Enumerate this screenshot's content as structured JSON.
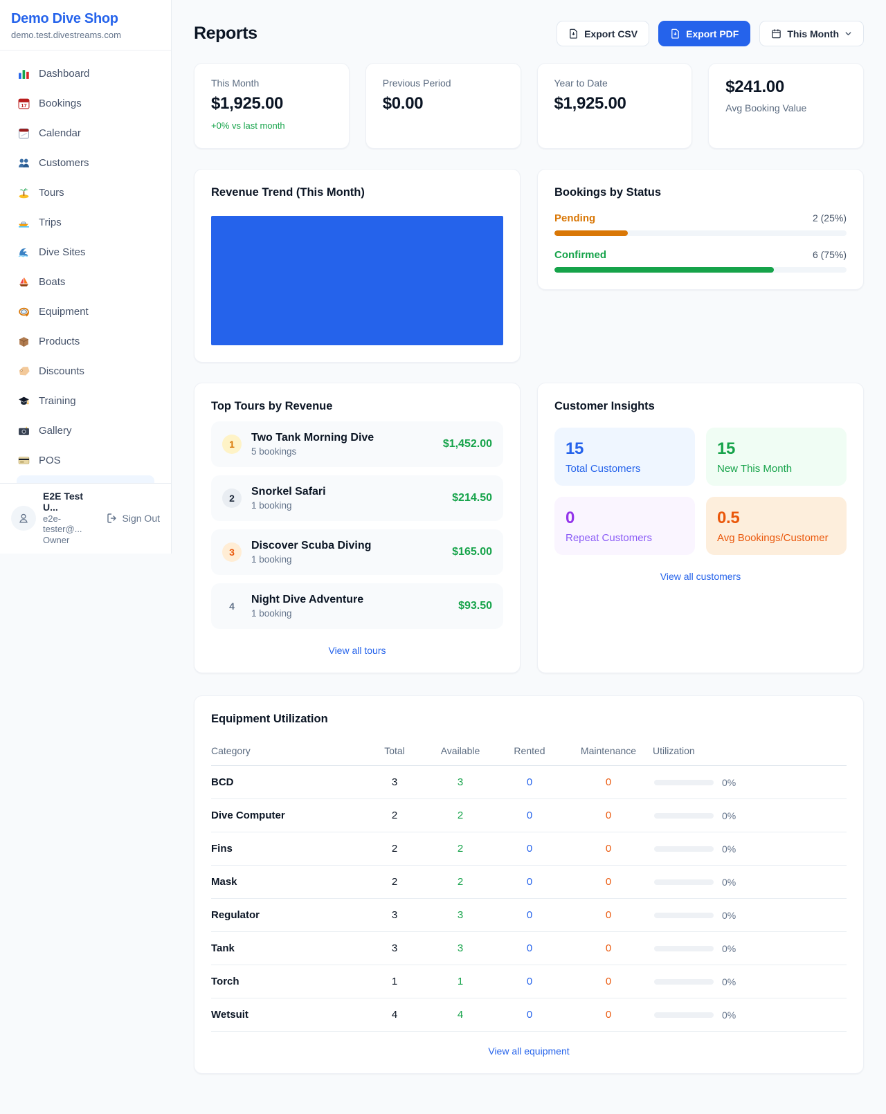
{
  "app": {
    "name": "Demo Dive Shop",
    "domain": "demo.test.divestreams.com"
  },
  "colors": {
    "primary": "#2563eb",
    "green": "#16a34a",
    "amber": "#d97706",
    "orange": "#ea580c",
    "purple": "#9333ea"
  },
  "sidebar": {
    "items": [
      {
        "icon": "bar-chart",
        "label": "Dashboard"
      },
      {
        "icon": "calendar-date",
        "label": "Bookings"
      },
      {
        "icon": "calendar-pad",
        "label": "Calendar"
      },
      {
        "icon": "people",
        "label": "Customers"
      },
      {
        "icon": "island",
        "label": "Tours"
      },
      {
        "icon": "speedboat",
        "label": "Trips"
      },
      {
        "icon": "wave",
        "label": "Dive Sites"
      },
      {
        "icon": "sailboat",
        "label": "Boats"
      },
      {
        "icon": "dive-mask",
        "label": "Equipment"
      },
      {
        "icon": "box",
        "label": "Products"
      },
      {
        "icon": "tag",
        "label": "Discounts"
      },
      {
        "icon": "grad-cap",
        "label": "Training"
      },
      {
        "icon": "camera",
        "label": "Gallery"
      },
      {
        "icon": "credit-card",
        "label": "POS"
      }
    ],
    "user": {
      "name": "E2E Test U...",
      "email": "e2e-tester@...",
      "role": "Owner",
      "sign_out_label": "Sign Out"
    }
  },
  "header": {
    "title": "Reports",
    "export_csv_label": "Export CSV",
    "export_pdf_label": "Export PDF",
    "period_label": "This Month"
  },
  "stats": [
    {
      "label": "This Month",
      "value": "$1,925.00",
      "delta": "+0% vs last month"
    },
    {
      "label": "Previous Period",
      "value": "$0.00"
    },
    {
      "label": "Year to Date",
      "value": "$1,925.00"
    },
    {
      "label": "Avg Booking Value",
      "value": "$241.00"
    }
  ],
  "revenue_trend": {
    "title": "Revenue Trend (This Month)",
    "chart_data": {
      "type": "bar",
      "categories": [
        "This Month"
      ],
      "values": [
        1925
      ],
      "title": "Revenue Trend (This Month)",
      "xlabel": "",
      "ylabel": "",
      "note": "single full-width bar at 100% height",
      "bar_color": "#2563eb"
    }
  },
  "bookings_by_status": {
    "title": "Bookings by Status",
    "rows": [
      {
        "label": "Pending",
        "count": "2 (25%)",
        "pct": 25
      },
      {
        "label": "Confirmed",
        "count": "6 (75%)",
        "pct": 75
      }
    ]
  },
  "top_tours": {
    "title": "Top Tours by Revenue",
    "rows": [
      {
        "rank": "1",
        "name": "Two Tank Morning Dive",
        "bookings": "5 bookings",
        "revenue": "$1,452.00"
      },
      {
        "rank": "2",
        "name": "Snorkel Safari",
        "bookings": "1 booking",
        "revenue": "$214.50"
      },
      {
        "rank": "3",
        "name": "Discover Scuba Diving",
        "bookings": "1 booking",
        "revenue": "$165.00"
      },
      {
        "rank": "4",
        "name": "Night Dive Adventure",
        "bookings": "1 booking",
        "revenue": "$93.50"
      }
    ],
    "link": "View all tours"
  },
  "customer_insights": {
    "title": "Customer Insights",
    "tiles": [
      {
        "value": "15",
        "label": "Total Customers"
      },
      {
        "value": "15",
        "label": "New This Month"
      },
      {
        "value": "0",
        "label": "Repeat Customers"
      },
      {
        "value": "0.5",
        "label": "Avg Bookings/Customer"
      }
    ],
    "link": "View all customers"
  },
  "equipment": {
    "title": "Equipment Utilization",
    "columns": [
      "Category",
      "Total",
      "Available",
      "Rented",
      "Maintenance",
      "Utilization"
    ],
    "rows": [
      {
        "category": "BCD",
        "total": "3",
        "available": "3",
        "rented": "0",
        "maintenance": "0",
        "utilization": "0%"
      },
      {
        "category": "Dive Computer",
        "total": "2",
        "available": "2",
        "rented": "0",
        "maintenance": "0",
        "utilization": "0%"
      },
      {
        "category": "Fins",
        "total": "2",
        "available": "2",
        "rented": "0",
        "maintenance": "0",
        "utilization": "0%"
      },
      {
        "category": "Mask",
        "total": "2",
        "available": "2",
        "rented": "0",
        "maintenance": "0",
        "utilization": "0%"
      },
      {
        "category": "Regulator",
        "total": "3",
        "available": "3",
        "rented": "0",
        "maintenance": "0",
        "utilization": "0%"
      },
      {
        "category": "Tank",
        "total": "3",
        "available": "3",
        "rented": "0",
        "maintenance": "0",
        "utilization": "0%"
      },
      {
        "category": "Torch",
        "total": "1",
        "available": "1",
        "rented": "0",
        "maintenance": "0",
        "utilization": "0%"
      },
      {
        "category": "Wetsuit",
        "total": "4",
        "available": "4",
        "rented": "0",
        "maintenance": "0",
        "utilization": "0%"
      }
    ],
    "link": "View all equipment"
  }
}
